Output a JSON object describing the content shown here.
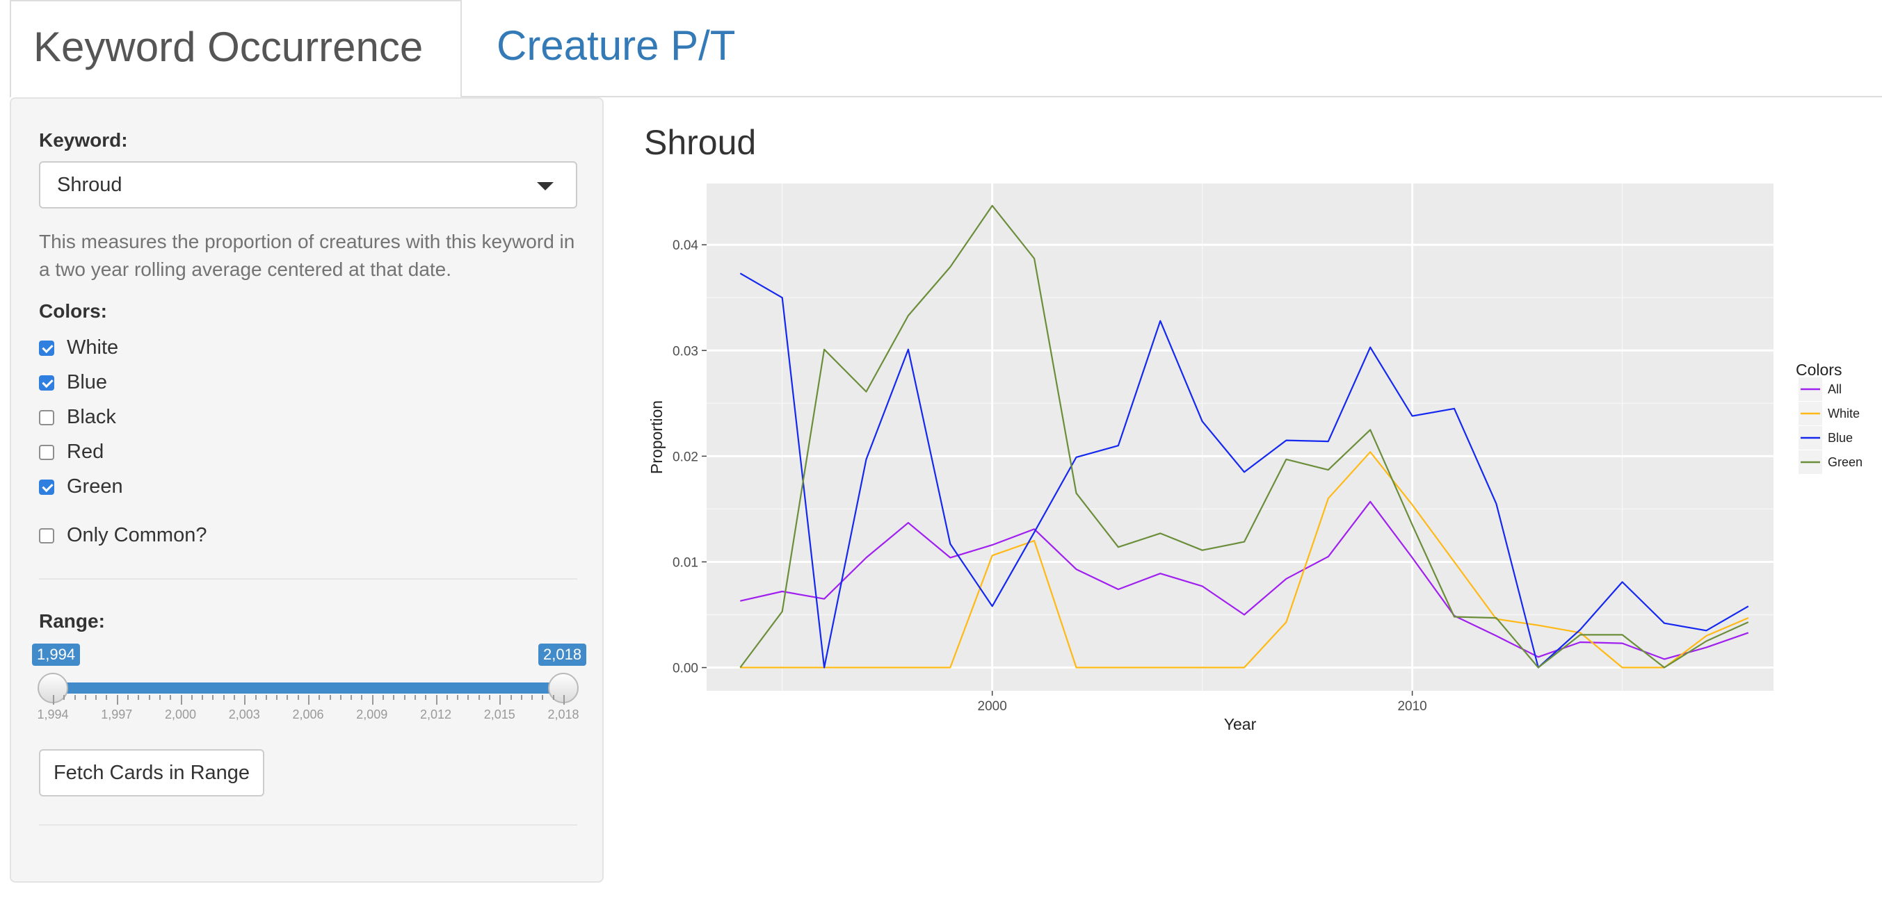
{
  "tabs": [
    {
      "label": "Keyword Occurrence",
      "active": true
    },
    {
      "label": "Creature P/T",
      "active": false
    }
  ],
  "sidebar": {
    "keyword_label": "Keyword:",
    "keyword_value": "Shroud",
    "help_text": "This measures the proportion of creatures with this keyword in a two year rolling average centered at that date.",
    "colors_label": "Colors:",
    "colors": [
      {
        "label": "White",
        "checked": true
      },
      {
        "label": "Blue",
        "checked": true
      },
      {
        "label": "Black",
        "checked": false
      },
      {
        "label": "Red",
        "checked": false
      },
      {
        "label": "Green",
        "checked": true
      }
    ],
    "only_common": {
      "label": "Only Common?",
      "checked": false
    },
    "range_label": "Range:",
    "range_min": "1,994",
    "range_max": "2,018",
    "range_ticks": [
      "1,994",
      "1,997",
      "2,000",
      "2,003",
      "2,006",
      "2,009",
      "2,012",
      "2,015",
      "2,018"
    ],
    "fetch_button": "Fetch Cards in Range"
  },
  "main": {
    "plot_title": "Shroud"
  },
  "chart_data": {
    "type": "line",
    "title": "Shroud",
    "xlabel": "Year",
    "ylabel": "Proportion",
    "xlim": [
      1993.2,
      2018.6
    ],
    "ylim": [
      -0.0022,
      0.0458
    ],
    "xticks": [
      2000,
      2010
    ],
    "yticks": [
      0.0,
      0.01,
      0.02,
      0.03,
      0.04
    ],
    "ytick_labels": [
      "0.00",
      "0.01",
      "0.02",
      "0.03",
      "0.04"
    ],
    "grid": true,
    "legend_title": "Colors",
    "legend_position": "right",
    "x": [
      1994,
      1995,
      1996,
      1997,
      1998,
      1999,
      2000,
      2001,
      2002,
      2003,
      2004,
      2005,
      2006,
      2007,
      2008,
      2009,
      2010,
      2011,
      2012,
      2013,
      2014,
      2015,
      2016,
      2017,
      2018
    ],
    "series": [
      {
        "name": "All",
        "color": "#a020f0",
        "values": [
          0.0063,
          0.0072,
          0.0065,
          0.0104,
          0.0137,
          0.0104,
          0.0116,
          0.0131,
          0.0093,
          0.0074,
          0.0089,
          0.0077,
          0.005,
          0.0084,
          0.0105,
          0.0157,
          0.0104,
          0.0049,
          0.003,
          0.001,
          0.0024,
          0.0023,
          0.0008,
          0.0019,
          0.0033
        ]
      },
      {
        "name": "White",
        "color": "#ffb914",
        "values": [
          0.0,
          0.0,
          0.0,
          0.0,
          0.0,
          0.0,
          0.0106,
          0.012,
          0.0,
          0.0,
          0.0,
          0.0,
          0.0,
          0.0043,
          0.016,
          0.0204,
          0.0154,
          0.01,
          0.0046,
          0.004,
          0.0033,
          0.0,
          0.0,
          0.003,
          0.0047
        ]
      },
      {
        "name": "Blue",
        "color": "#1428f0",
        "values": [
          0.0373,
          0.035,
          0.0,
          0.0197,
          0.0301,
          0.0117,
          0.0058,
          0.0128,
          0.0199,
          0.021,
          0.0328,
          0.0233,
          0.0185,
          0.0215,
          0.0214,
          0.0303,
          0.0238,
          0.0245,
          0.0155,
          0.0,
          0.0036,
          0.0081,
          0.0042,
          0.0035,
          0.0058
        ]
      },
      {
        "name": "Green",
        "color": "#6b8e3a",
        "values": [
          0.0,
          0.0053,
          0.0301,
          0.0261,
          0.0333,
          0.0379,
          0.0437,
          0.0387,
          0.0165,
          0.0114,
          0.0127,
          0.0111,
          0.0119,
          0.0197,
          0.0187,
          0.0225,
          0.0135,
          0.0048,
          0.0047,
          0.0,
          0.0031,
          0.0031,
          0.0,
          0.0025,
          0.0043
        ]
      }
    ]
  }
}
